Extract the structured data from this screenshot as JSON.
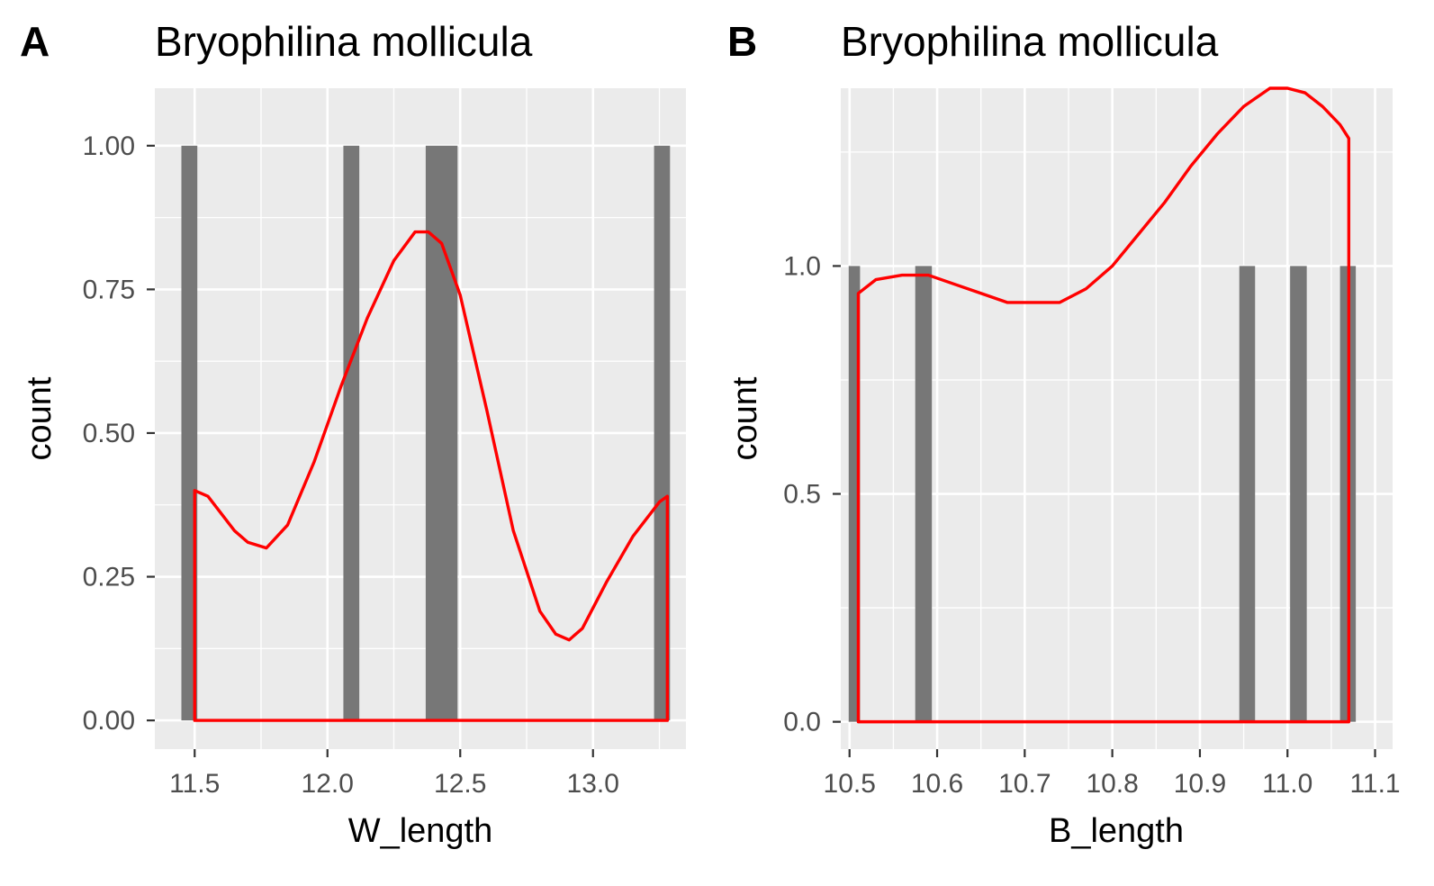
{
  "chart_data": [
    {
      "type": "bar",
      "tag": "A",
      "title": "Bryophilina mollicula",
      "xlabel": "W_length",
      "ylabel": "count",
      "xlim": [
        11.35,
        13.35
      ],
      "ylim": [
        -0.05,
        1.1
      ],
      "x_ticks": [
        11.5,
        12.0,
        12.5,
        13.0
      ],
      "x_tick_labels": [
        "11.5",
        "12.0",
        "12.5",
        "13.0"
      ],
      "y_ticks": [
        0,
        0.25,
        0.5,
        0.75,
        1.0
      ],
      "y_tick_labels": [
        "0.00",
        "0.25",
        "0.50",
        "0.75",
        "1.00"
      ],
      "bars": [
        {
          "x0": 11.45,
          "x1": 11.51,
          "count": 1
        },
        {
          "x0": 12.06,
          "x1": 12.12,
          "count": 1
        },
        {
          "x0": 12.37,
          "x1": 12.49,
          "count": 1
        },
        {
          "x0": 13.23,
          "x1": 13.29,
          "count": 1
        }
      ],
      "density_curve": {
        "color": "#ff0000",
        "x": [
          11.5,
          11.55,
          11.6,
          11.65,
          11.7,
          11.77,
          11.85,
          11.95,
          12.05,
          12.15,
          12.25,
          12.33,
          12.38,
          12.43,
          12.5,
          12.6,
          12.7,
          12.8,
          12.86,
          12.91,
          12.96,
          13.05,
          13.15,
          13.25,
          13.28
        ],
        "y": [
          0.4,
          0.39,
          0.36,
          0.33,
          0.31,
          0.3,
          0.34,
          0.45,
          0.58,
          0.7,
          0.8,
          0.85,
          0.85,
          0.83,
          0.74,
          0.54,
          0.33,
          0.19,
          0.15,
          0.14,
          0.16,
          0.24,
          0.32,
          0.38,
          0.39
        ]
      }
    },
    {
      "type": "bar",
      "tag": "B",
      "title": "Bryophilina mollicula",
      "xlabel": "B_length",
      "ylabel": "count",
      "xlim": [
        10.49,
        11.12
      ],
      "ylim": [
        -0.06,
        1.39
      ],
      "x_ticks": [
        10.5,
        10.6,
        10.7,
        10.8,
        10.9,
        11.0,
        11.1
      ],
      "x_tick_labels": [
        "10.5",
        "10.6",
        "10.7",
        "10.8",
        "10.9",
        "11.0",
        "11.1"
      ],
      "y_ticks": [
        0,
        0.5,
        1.0
      ],
      "y_tick_labels": [
        "0.0",
        "0.5",
        "1.0"
      ],
      "bars": [
        {
          "x0": 10.499,
          "x1": 10.512,
          "count": 1
        },
        {
          "x0": 10.575,
          "x1": 10.594,
          "count": 1
        },
        {
          "x0": 10.945,
          "x1": 10.963,
          "count": 1
        },
        {
          "x0": 11.003,
          "x1": 11.022,
          "count": 1
        },
        {
          "x0": 11.06,
          "x1": 11.078,
          "count": 1
        }
      ],
      "density_curve": {
        "color": "#ff0000",
        "x": [
          10.51,
          10.53,
          10.56,
          10.59,
          10.62,
          10.65,
          10.68,
          10.71,
          10.74,
          10.77,
          10.8,
          10.83,
          10.86,
          10.89,
          10.92,
          10.95,
          10.98,
          11.0,
          11.02,
          11.04,
          11.06,
          11.07
        ],
        "y": [
          0.94,
          0.97,
          0.98,
          0.98,
          0.96,
          0.94,
          0.92,
          0.92,
          0.92,
          0.95,
          1.0,
          1.07,
          1.14,
          1.22,
          1.29,
          1.35,
          1.39,
          1.39,
          1.38,
          1.35,
          1.31,
          1.28
        ]
      }
    }
  ]
}
